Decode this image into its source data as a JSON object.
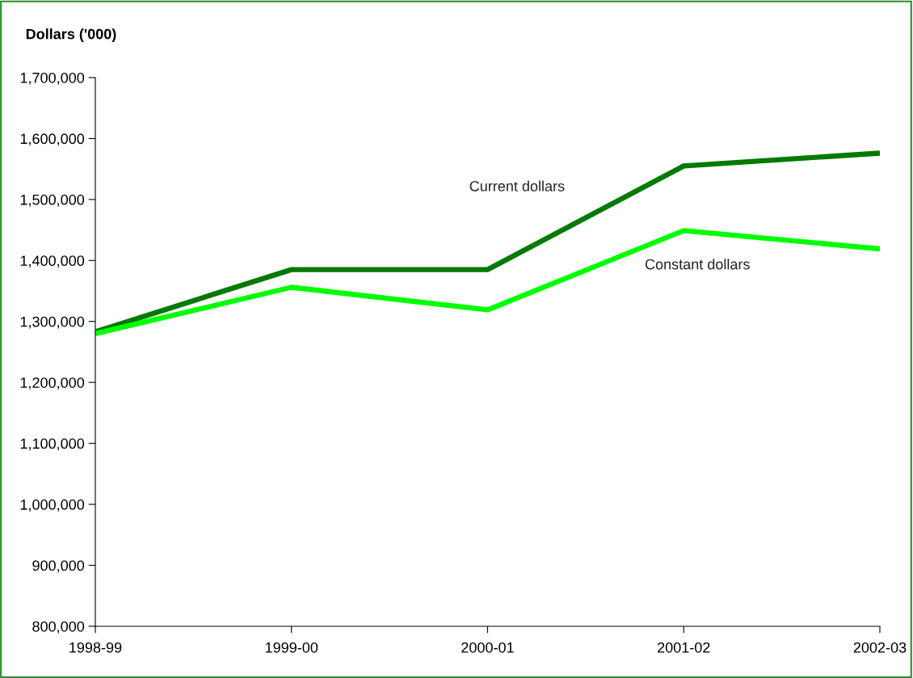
{
  "chart_data": {
    "type": "line",
    "ylabel": "Dollars ('000)",
    "categories": [
      "1998-99",
      "1999-00",
      "2000-01",
      "2001-02",
      "2002-03"
    ],
    "series": [
      {
        "name": "Current dollars",
        "color": "#007a00",
        "values": [
          1283000,
          1385000,
          1385000,
          1555000,
          1576000
        ]
      },
      {
        "name": "Constant dollars",
        "color": "#00ff00",
        "values": [
          1280000,
          1356000,
          1319000,
          1449000,
          1419000
        ]
      }
    ],
    "ylim": [
      800000,
      1700000
    ],
    "yticks": [
      {
        "value": 800000,
        "label": "800,000"
      },
      {
        "value": 900000,
        "label": "900,000"
      },
      {
        "value": 1000000,
        "label": "1,000,000"
      },
      {
        "value": 1100000,
        "label": "1,100,000"
      },
      {
        "value": 1200000,
        "label": "1,200,000"
      },
      {
        "value": 1300000,
        "label": "1,300,000"
      },
      {
        "value": 1400000,
        "label": "1,400,000"
      },
      {
        "value": 1500000,
        "label": "1,500,000"
      },
      {
        "value": 1600000,
        "label": "1,600,000"
      },
      {
        "value": 1700000,
        "label": "1,700,000"
      }
    ],
    "grid": false,
    "legend": false,
    "marker": "none",
    "line_style": "solid"
  }
}
